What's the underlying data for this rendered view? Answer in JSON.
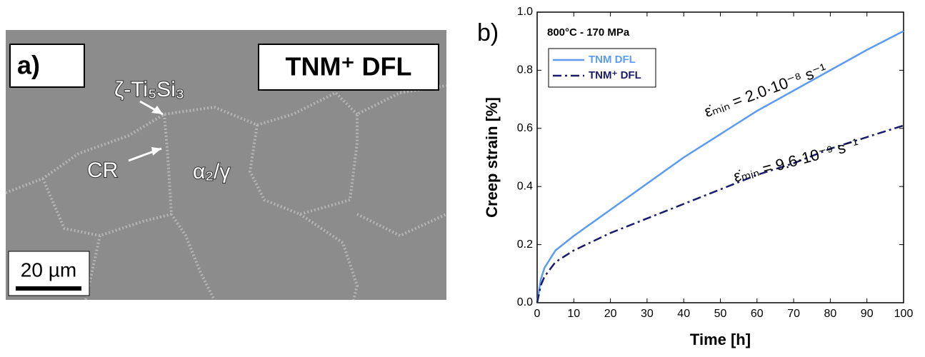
{
  "micrograph": {
    "panel_label": "a)",
    "sample_label": "TNM⁺ DFL",
    "phase_label": "ζ-Ti₅Si₃",
    "cr_label": "CR",
    "matrix_label": "α₂/γ",
    "scale_label": "20 µm"
  },
  "chart_data": {
    "type": "line",
    "panel_label": "b)",
    "title": "800°C - 170 MPa",
    "x_label": "Time [h]",
    "y_label": "Creep strain [%]",
    "x": [
      0,
      1,
      2,
      5,
      10,
      20,
      30,
      40,
      50,
      60,
      70,
      80,
      90,
      100
    ],
    "series": [
      {
        "name": "TNM DFL",
        "color": "#5b9cf2",
        "values": [
          0,
          0.08,
          0.12,
          0.18,
          0.23,
          0.32,
          0.41,
          0.5,
          0.58,
          0.66,
          0.73,
          0.8,
          0.87,
          0.935
        ]
      },
      {
        "name": "TNM⁺ DFL",
        "color": "#1b1b6b",
        "values": [
          0,
          0.06,
          0.09,
          0.14,
          0.18,
          0.24,
          0.29,
          0.34,
          0.39,
          0.44,
          0.48,
          0.53,
          0.57,
          0.61
        ]
      }
    ],
    "annotations": [
      "ε̇ₘᵢₙ = 2.0·10⁻⁸ s⁻¹",
      "ε̇ₘᵢₙ = 9.6·10⁻⁹ s⁻¹"
    ],
    "xlim": [
      0,
      100
    ],
    "xticks": [
      0,
      10,
      20,
      30,
      40,
      50,
      60,
      70,
      80,
      90,
      100
    ],
    "ylim": [
      0,
      1
    ],
    "yticks": [
      {
        "value": 0,
        "label": "0.0"
      },
      0.2,
      0.4,
      0.6,
      0.8,
      {
        "value": 1,
        "label": "1.0"
      }
    ],
    "legend": "upper left",
    "grid": false
  }
}
